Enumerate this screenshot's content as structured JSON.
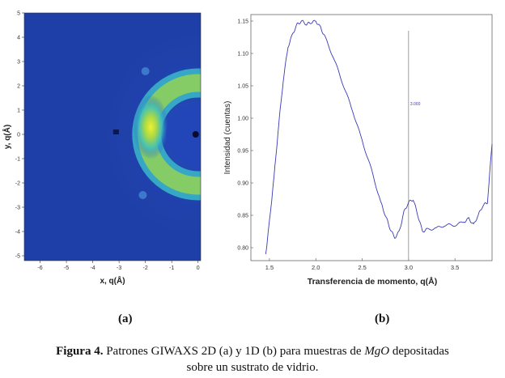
{
  "figure": {
    "label_a": "(a)",
    "label_b": "(b)",
    "caption_prefix": "Figura 4.",
    "caption_text_1": " Patrones GIWAXS 2D (a) y 1D (b) para muestras de ",
    "caption_italic": "MgO",
    "caption_text_2": " depositadas",
    "caption_line2": "sobre un sustrato de vidrio."
  },
  "chart_data": [
    {
      "type": "heatmap",
      "xlabel": "x, q(Å)",
      "ylabel": "y, q(Å)",
      "xlim": [
        -6.6,
        0.1
      ],
      "ylim": [
        -5.2,
        5.0
      ],
      "xticks": [
        "-6",
        "-5",
        "-4",
        "-3",
        "-2",
        "-1",
        "0"
      ],
      "yticks": [
        "5",
        "4",
        "3",
        "2",
        "1",
        "0",
        "-1",
        "-2",
        "-3",
        "-4",
        "-5"
      ],
      "ring": {
        "center": [
          0,
          0
        ],
        "radius": 1.95,
        "max_at": [
          -1.8,
          0.3
        ]
      },
      "colors": {
        "background": "#1f3fa8",
        "outer": "#2a4fc4",
        "mid": "#38b8c0",
        "peak": "#e8e830"
      }
    },
    {
      "type": "line",
      "xlabel": "Transferencia de momento, q(Å)",
      "ylabel": "Intensidad (cuentas)",
      "xlim": [
        1.3,
        3.9
      ],
      "ylim": [
        0.78,
        1.16
      ],
      "xticks": [
        "1.5",
        "2.0",
        "2.5",
        "3.0",
        "3.5"
      ],
      "yticks": [
        "0.80",
        "0.85",
        "0.90",
        "0.95",
        "1.00",
        "1.05",
        "1.10",
        "1.15"
      ],
      "marker": {
        "x": 3.0,
        "label": "3.000"
      },
      "series": [
        {
          "color": "#3a3ab8",
          "x": [
            1.46,
            1.5,
            1.55,
            1.6,
            1.65,
            1.7,
            1.75,
            1.8,
            1.85,
            1.9,
            1.95,
            2.0,
            2.05,
            2.1,
            2.2,
            2.3,
            2.4,
            2.5,
            2.6,
            2.7,
            2.75,
            2.8,
            2.85,
            2.9,
            2.95,
            3.0,
            3.05,
            3.1,
            3.15,
            3.2,
            3.3,
            3.4,
            3.5,
            3.6,
            3.65,
            3.7,
            3.75,
            3.8,
            3.85,
            3.9
          ],
          "y": [
            0.79,
            0.84,
            0.91,
            0.99,
            1.06,
            1.11,
            1.13,
            1.145,
            1.15,
            1.145,
            1.148,
            1.15,
            1.14,
            1.125,
            1.09,
            1.05,
            1.01,
            0.965,
            0.92,
            0.87,
            0.85,
            0.83,
            0.815,
            0.825,
            0.855,
            0.87,
            0.875,
            0.85,
            0.825,
            0.828,
            0.83,
            0.835,
            0.835,
            0.84,
            0.845,
            0.835,
            0.85,
            0.865,
            0.87,
            0.96
          ]
        }
      ]
    }
  ]
}
